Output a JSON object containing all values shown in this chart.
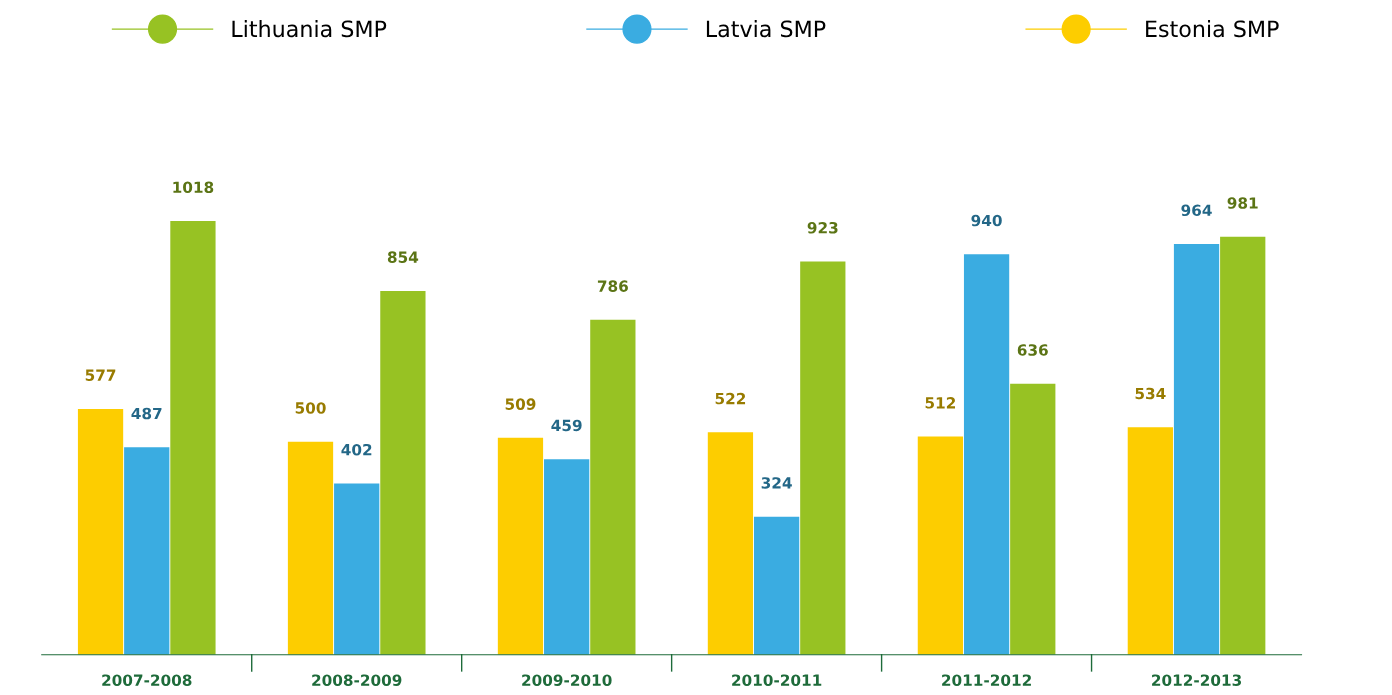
{
  "chart_data": {
    "type": "bar",
    "categories": [
      "2007-2008",
      "2008-2009",
      "2009-2010",
      "2010-2011",
      "2011-2012",
      "2012-2013"
    ],
    "series": [
      {
        "name": "Estonia SMP",
        "color": "#fdcd00",
        "values": [
          577,
          500,
          509,
          522,
          512,
          534
        ]
      },
      {
        "name": "Latvia SMP",
        "color": "#3aace1",
        "values": [
          487,
          402,
          459,
          324,
          940,
          964
        ]
      },
      {
        "name": "Lithuania SMP",
        "color": "#97c223",
        "values": [
          1018,
          854,
          786,
          923,
          636,
          981
        ]
      }
    ],
    "data_labels": true,
    "grid": false,
    "legend": "top"
  }
}
